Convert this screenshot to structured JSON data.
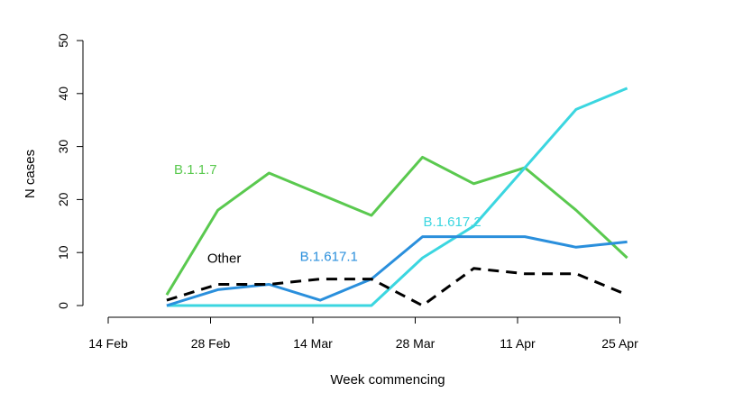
{
  "chart_data": {
    "type": "line",
    "xlabel": "Week commencing",
    "ylabel": "N cases",
    "ylim": [
      0,
      50
    ],
    "y_ticks": [
      0,
      10,
      20,
      30,
      40,
      50
    ],
    "x_tick_labels": [
      "14 Feb",
      "28 Feb",
      "14 Mar",
      "28 Mar",
      "11 Apr",
      "25 Apr"
    ],
    "x": [
      "2021-02-22",
      "2021-03-01",
      "2021-03-08",
      "2021-03-15",
      "2021-03-22",
      "2021-03-29",
      "2021-04-05",
      "2021-04-12",
      "2021-04-19",
      "2021-04-26"
    ],
    "series": [
      {
        "name": "B.1.1.7",
        "color": "#5ac94f",
        "dash": "solid",
        "values": [
          2,
          18,
          25,
          21,
          17,
          28,
          23,
          26,
          18,
          9
        ]
      },
      {
        "name": "B.1.617.2",
        "color": "#3bd6e0",
        "dash": "solid",
        "values": [
          0,
          0,
          0,
          0,
          0,
          9,
          15,
          26,
          37,
          41
        ]
      },
      {
        "name": "B.1.617.1",
        "color": "#2a8fdc",
        "dash": "solid",
        "values": [
          0,
          3,
          4,
          1,
          5,
          13,
          13,
          13,
          11,
          12
        ]
      },
      {
        "name": "Other",
        "color": "#000000",
        "dash": "dashed",
        "values": [
          1,
          4,
          4,
          5,
          5,
          0,
          7,
          6,
          6,
          2
        ]
      }
    ],
    "grid": false,
    "legend": "inline labels"
  }
}
